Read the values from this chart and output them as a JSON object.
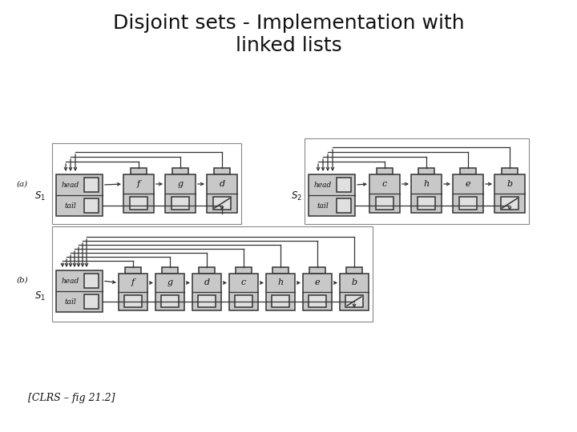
{
  "title": "Disjoint sets - Implementation with\nlinked lists",
  "citation": "[CLRS – fig 21.2]",
  "bg_color": "#ffffff",
  "node_fill": "#c8c8c8",
  "node_edge": "#333333",
  "inner_fill": "#e0e0e0",
  "text_color": "#111111",
  "title_fontsize": 18,
  "s1a_labels": [
    "f",
    "g",
    "d"
  ],
  "s2a_labels": [
    "c",
    "h",
    "e",
    "b"
  ],
  "sb_labels": [
    "f",
    "g",
    "d",
    "c",
    "h",
    "e",
    "b"
  ]
}
